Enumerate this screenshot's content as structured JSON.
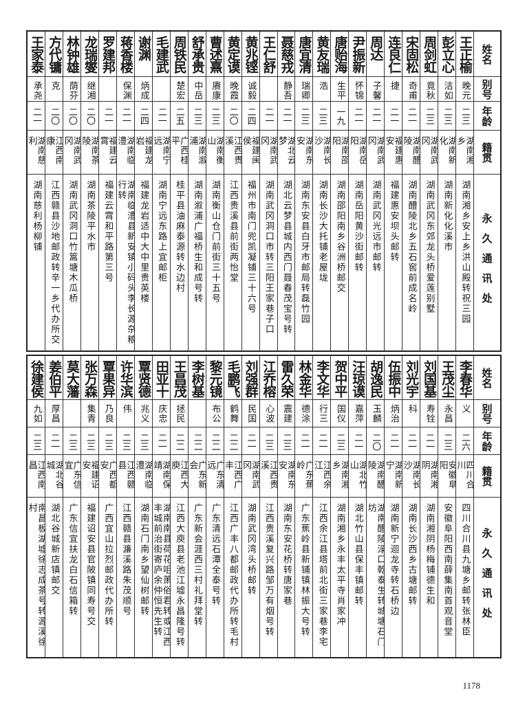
{
  "headers": {
    "name": "姓名",
    "alias": "别号",
    "age": "年龄",
    "hometown": "籍贯",
    "address": "永久通讯处"
  },
  "top": [
    {
      "name": "王正榆",
      "alias": "晚元",
      "age": "二三",
      "hometown": "湖南湘乡",
      "address": "湖南湘乡安上乡洪山殿转祝三园"
    },
    {
      "name": "彭立心",
      "alias": "洁如",
      "age": "二三",
      "hometown": "湖南新化",
      "address": "湖南新化化溪市"
    },
    {
      "name": "周剑虹",
      "alias": "竟秋",
      "age": "二三",
      "hometown": "湖南武冈",
      "address": "湖南武冈东郊龙头桥爱莲别墅"
    },
    {
      "name": "宋固松",
      "alias": "奇甫",
      "age": "二一",
      "hometown": "湖南醴陵",
      "address": "湖南醴陵北乡五石窖前成名岭"
    },
    {
      "name": "连良仁",
      "alias": "捷",
      "age": "二一",
      "hometown": "福建惠安",
      "address": "福建惠安坝头邮转"
    },
    {
      "name": "周达",
      "alias": "子馨",
      "age": "二一",
      "hometown": "湖南武冈",
      "address": "湖南武冈光远市邮转"
    },
    {
      "name": "尹振新",
      "alias": "怀锦",
      "age": "二一",
      "hometown": "湖南岳阳",
      "address": "湖南岳阳黄沙街邮转"
    },
    {
      "name": "唐贻海",
      "alias": "生平",
      "age": "一九",
      "hometown": "湖南邵阳",
      "address": "湖南邵阳南乡谷洲桥邮交"
    },
    {
      "name": "黄友瑞",
      "alias": "浩",
      "age": "二三",
      "hometown": "湖南长沙",
      "address": "湖南长沙大托铺老屋垅"
    },
    {
      "name": "唐宜清",
      "alias": "瑞卿",
      "age": "二三",
      "hometown": "湖南东安",
      "address": "湖南东安县白牙市邮局转磊竹园"
    },
    {
      "name": "聂慈戎",
      "alias": "静吾",
      "age": "二一",
      "hometown": "湖北云梦",
      "address": "湖北云梦县城内西门聂春茂宝号转"
    },
    {
      "name": "王仁舒",
      "alias": "",
      "age": "二一",
      "hometown": "湖南武冈",
      "address": "湖南武冈洞口市转三阳王家巷子口"
    },
    {
      "name": "黄兆铿",
      "alias": "诚毅",
      "age": "二四",
      "hometown": "福建闽侯",
      "address": "福州市南门兜凯凝铺三十六号"
    },
    {
      "name": "黄定谟",
      "alias": "晚霞",
      "age": "二〇",
      "hometown": "江西贵溪",
      "address": "江西贵溪县前街两怡堂"
    },
    {
      "name": "曹述熹",
      "alias": "赓康",
      "age": "二三",
      "hometown": "湖南衡山",
      "address": "湖南衡山仓门前街三十五号"
    },
    {
      "name": "舒承贵",
      "alias": "中岳",
      "age": "二三",
      "hometown": "湖南溆浦",
      "address": "湖南溆浦广福桥生和成号转"
    },
    {
      "name": "周铁民",
      "alias": "楚宏",
      "age": "二五",
      "hometown": "广西桂平",
      "address": "桂平县油麻泰源转水边村"
    },
    {
      "name": "毛建武",
      "alias": "",
      "age": "二一",
      "hometown": "湖南宁远",
      "address": "湖南宁远东路上宜邮柜"
    },
    {
      "name": "谢渊",
      "alias": "炳成",
      "age": "二四",
      "hometown": "福建龙岩",
      "address": "福建龙岩适中大中里贵英楼"
    },
    {
      "name": "蒋香楼",
      "alias": "保渊",
      "age": "二一",
      "hometown": "湖南临澧",
      "address": "湖南临澧县新安镇小码头李长源杂粮行转"
    },
    {
      "name": "罗建邦",
      "alias": "",
      "age": "二一",
      "hometown": "福建云霄",
      "address": "福建云霄和平路第三号"
    },
    {
      "name": "龙瑞燮",
      "alias": "继湘",
      "age": "二〇",
      "hometown": "湖南茶陵",
      "address": "湖南茶陵平水市"
    },
    {
      "name": "林钟雄",
      "alias": "荫芬",
      "age": "二〇",
      "hometown": "湖南武冈",
      "address": "湖南武冈洞口竹篙塘木瓜桥"
    },
    {
      "name": "方代镛",
      "alias": "克",
      "age": "二〇",
      "hometown": "江西南康",
      "address": "江西赣县沙地邮政转辛一乡代办所交"
    },
    {
      "name": "王家泰",
      "alias": "承尧",
      "age": "二一",
      "hometown": "湖南慈利",
      "address": "湖南慈利杨柳铺"
    }
  ],
  "bottom": [
    {
      "name": "李春华",
      "alias": "义",
      "age": "二六",
      "hometown": "四川合川",
      "address": "四川合川县九塘乡邮转张林臣"
    },
    {
      "name": "王茂尘",
      "alias": "永昌",
      "age": "二三",
      "hometown": "安徽阜阳",
      "address": "安徽阜阳西南薛集南首观音堂"
    },
    {
      "name": "刘国基",
      "alias": "寿铨",
      "age": "二一",
      "hometown": "湖南湘阴",
      "address": "湖南湘阴杨梅铺德生和"
    },
    {
      "name": "刘光宇",
      "alias": "科",
      "age": "二一",
      "hometown": "湖南长沙",
      "address": "湖南长沙西乡古塘邮转"
    },
    {
      "name": "伍振中",
      "alias": "炳治",
      "age": "二一",
      "hometown": "湖南新宁",
      "address": "湖南新宁迴龙寺转石桥边"
    },
    {
      "name": "胡逸民",
      "alias": "玉麟",
      "age": "二〇",
      "hometown": "湖南醴陵",
      "address": "湖南醴陵渌口乾泰生转城塘石门坊"
    },
    {
      "name": "汪琼谟",
      "alias": "嘉萍",
      "age": "二一",
      "hometown": "湖北竹山",
      "address": "湖北竹山县保丰镇邮转"
    },
    {
      "name": "贺中平",
      "alias": "国仪",
      "age": "二三",
      "hometown": "湖南湘乡",
      "address": "湖南湘乡永丰太平寺肖家冲"
    },
    {
      "name": "李文华",
      "alias": "行三",
      "age": "二一",
      "hometown": "江西余江",
      "address": "江西余江县塔前北街三家巷李宅"
    },
    {
      "name": "林金华",
      "alias": "德涂",
      "age": "二一",
      "hometown": "广东蕉岭",
      "address": "广东蕉岭县新铺镇林振大号转"
    },
    {
      "name": "雷久荣",
      "alias": "震建",
      "age": "二三",
      "hometown": "湖南东安",
      "address": "湖南东安花桥转唐家巷"
    },
    {
      "name": "江乔榕",
      "alias": "心波",
      "age": "二三",
      "hometown": "江西贵溪",
      "address": "江西贵溪复兴路邹万有烟号转"
    },
    {
      "name": "刘强群",
      "alias": "民国",
      "age": "二一",
      "hometown": "湖南武冈",
      "address": "湖南武冈湾头桥邮转"
    },
    {
      "name": "毛鹏飞",
      "alias": "鹤舞",
      "age": "二二",
      "hometown": "江西广丰",
      "address": "江西广丰八都邮政代办所转毛村"
    },
    {
      "name": "黎元镜",
      "alias": "布公",
      "age": "二二",
      "hometown": "广东清远",
      "address": "广东清远石潭全泰号转"
    },
    {
      "name": "李树基",
      "alias": "",
      "age": "二二",
      "hometown": "广东新会",
      "address": "广东新会涯西三村礼拜堂转"
    },
    {
      "name": "王昌茂",
      "alias": "拯民",
      "age": "二二",
      "hometown": "江西大庾",
      "address": "江西大庾县老池江墟永昌隆号转"
    },
    {
      "name": "田亚十",
      "alias": "庆忠",
      "age": "二一",
      "hometown": "湖南保靖",
      "address": "湖南南县荷花咀萧俗君转或江西丰城前治街寄庐余仲恒先生转"
    },
    {
      "name": "覃贤德",
      "alias": "兆义",
      "age": "二三",
      "hometown": "湖南临澧",
      "address": "湖南石门南乡望仙树邮转"
    },
    {
      "name": "许华滨",
      "alias": "伟",
      "age": "二三",
      "hometown": "江西赣县",
      "address": "江西赣县濂溪路朱茂顺号"
    },
    {
      "name": "覃果异",
      "alias": "乃良",
      "age": "二三",
      "hometown": "广西都安",
      "address": "广西宜山拉烈邮政代办所转"
    },
    {
      "name": "张万森",
      "alias": "集青",
      "age": "二三",
      "hometown": "福建诏安",
      "address": "福建诏安县官陂镇同寿号交"
    },
    {
      "name": "莫大藩",
      "alias": "",
      "age": "二三",
      "hometown": "广东信宜",
      "address": "广东信宜扶龙白石信箱转"
    },
    {
      "name": "姜伯平",
      "alias": "厚昌",
      "age": "二一",
      "hometown": "湖北谷城",
      "address": "湖北谷城新店镇邮交"
    },
    {
      "name": "徐建侯",
      "alias": "九如",
      "age": "二三",
      "hometown": "江西南昌",
      "address": "南昌板湖墟徐志成茶号转源溪徐村"
    }
  ],
  "page_number": "1178"
}
